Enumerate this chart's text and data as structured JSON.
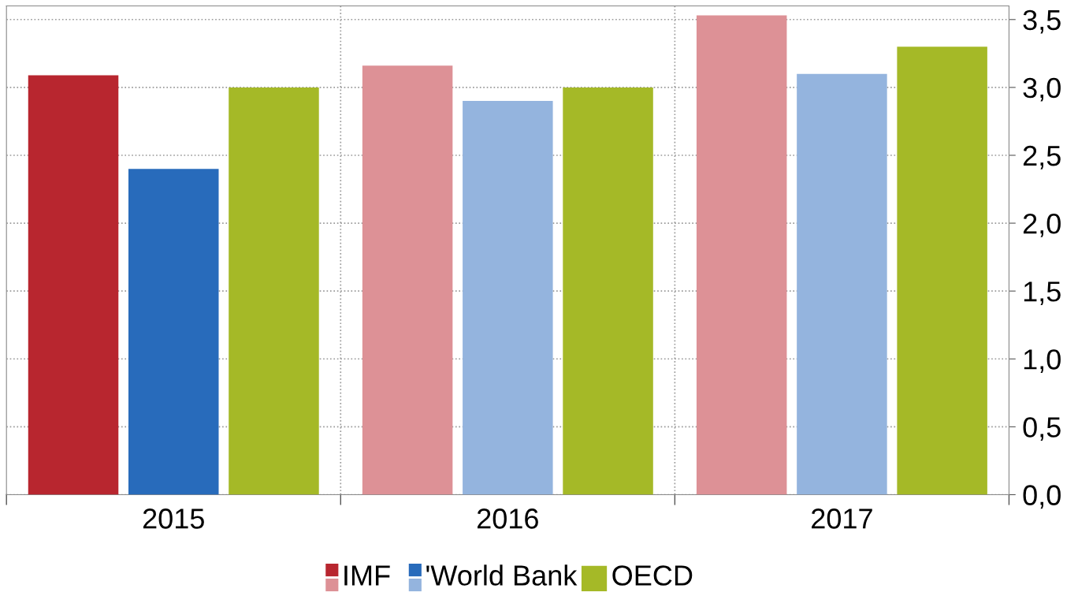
{
  "chart_data": {
    "type": "bar",
    "categories": [
      "2015",
      "2016",
      "2017"
    ],
    "series": [
      {
        "name": "IMF",
        "colors": [
          "#b8262f",
          "#dd9196",
          "#dd9196"
        ],
        "values": [
          3.09,
          3.16,
          3.53
        ]
      },
      {
        "name": "'World Bank",
        "colors": [
          "#286bbb",
          "#94b4de",
          "#94b4de"
        ],
        "values": [
          2.4,
          2.9,
          3.1
        ]
      },
      {
        "name": "OECD",
        "colors": [
          "#a5b927",
          "#a5b927",
          "#a5b927"
        ],
        "values": [
          3.0,
          3.0,
          3.3
        ]
      }
    ],
    "ylim": [
      0,
      3.6
    ],
    "yticks": [
      {
        "value": 0,
        "label": "0,0"
      },
      {
        "value": 0.5,
        "label": "0,5"
      },
      {
        "value": 1,
        "label": "1,0"
      },
      {
        "value": 1.5,
        "label": "1,5"
      },
      {
        "value": 2,
        "label": "2,0"
      },
      {
        "value": 2.5,
        "label": "2,5"
      },
      {
        "value": 3,
        "label": "3,0"
      },
      {
        "value": 3.5,
        "label": "3,5"
      }
    ],
    "grid": true,
    "legend": "bottom"
  }
}
